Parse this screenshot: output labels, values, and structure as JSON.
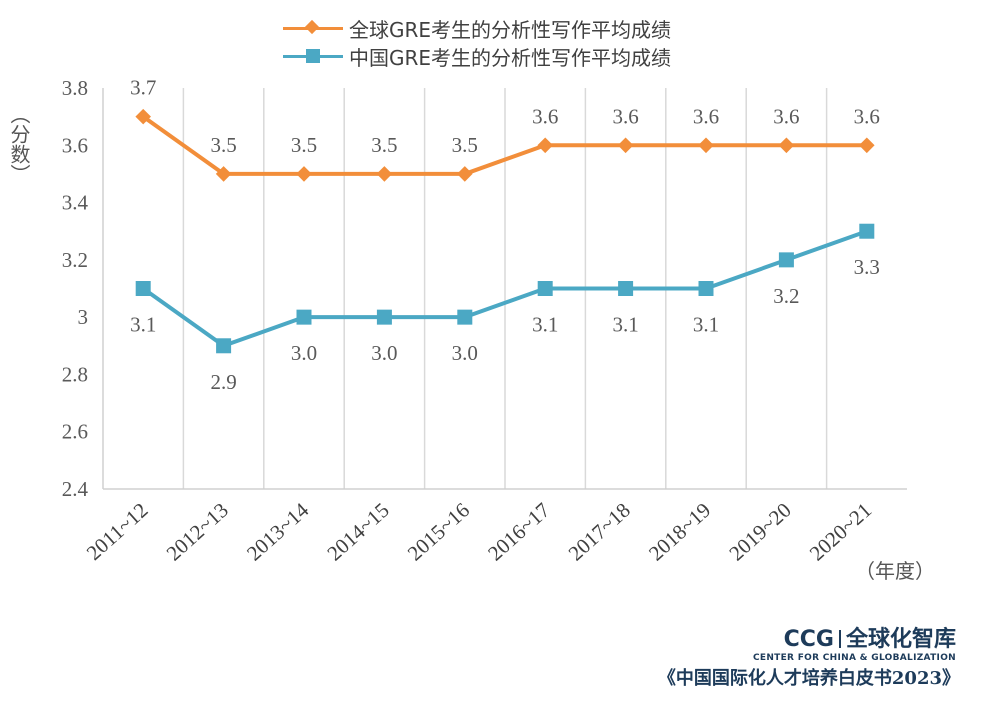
{
  "chart_data": {
    "type": "line",
    "categories": [
      "2011~12",
      "2012~13",
      "2013~14",
      "2014~15",
      "2015~16",
      "2016~17",
      "2017~18",
      "2018~19",
      "2019~20",
      "2020~21"
    ],
    "series": [
      {
        "name": "全球GRE考生的分析性写作平均成绩",
        "color": "#F28E3A",
        "marker": "diamond",
        "values": [
          3.7,
          3.5,
          3.5,
          3.5,
          3.5,
          3.6,
          3.6,
          3.6,
          3.6,
          3.6
        ],
        "labels": [
          "3.7",
          "3.5",
          "3.5",
          "3.5",
          "3.5",
          "3.6",
          "3.6",
          "3.6",
          "3.6",
          "3.6"
        ]
      },
      {
        "name": "中国GRE考生的分析性写作平均成绩",
        "color": "#4BA8C4",
        "marker": "square",
        "values": [
          3.1,
          2.9,
          3.0,
          3.0,
          3.0,
          3.1,
          3.1,
          3.1,
          3.2,
          3.3
        ],
        "labels": [
          "3.1",
          "2.9",
          "3.0",
          "3.0",
          "3.0",
          "3.1",
          "3.1",
          "3.1",
          "3.2",
          "3.3"
        ]
      }
    ],
    "ylim": [
      2.4,
      3.8
    ],
    "yticks": [
      "2.4",
      "2.6",
      "2.8",
      "3",
      "3.2",
      "3.4",
      "3.6",
      "3.8"
    ],
    "ylabel": "（分数）",
    "xlabel": "（年度）",
    "grid": "vertical",
    "legend": "top-center"
  },
  "branding": {
    "logo_main": "CCG",
    "logo_cn": "全球化智库",
    "logo_sub": "CENTER FOR CHINA & GLOBALIZATION",
    "book_title": "《中国国际化人才培养白皮书2023》"
  }
}
